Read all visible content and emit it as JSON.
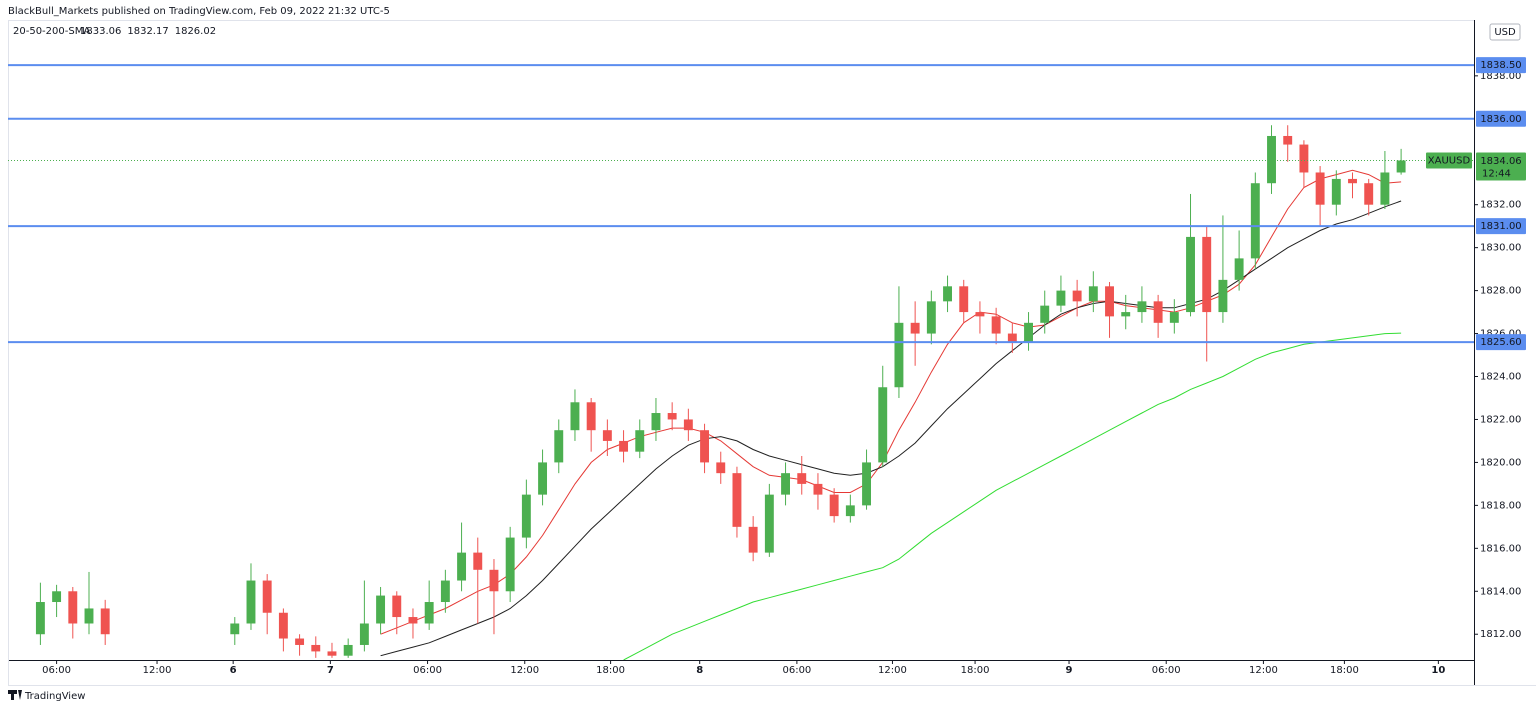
{
  "chart_data": {
    "type": "candlestick",
    "title": "BlackBull_Markets published on TradingView.com, Feb 09, 2022 21:32 UTC-5",
    "indicator": "20-50-200-SMA",
    "symbol": "XAUUSD",
    "countdown": "12:44",
    "currency": "USD",
    "brand": "TradingView",
    "up_color": "#4caf50",
    "down_color": "#ef5350",
    "xlim": [
      0,
      90.5
    ],
    "ylim": [
      1810.8,
      1840.6
    ],
    "xticks": [
      {
        "value": 3.0,
        "label": "06:00"
      },
      {
        "value": 9.2,
        "label": "12:00"
      },
      {
        "value": 13.9,
        "label": "6"
      },
      {
        "value": 19.9,
        "label": "7"
      },
      {
        "value": 25.9,
        "label": "06:00"
      },
      {
        "value": 31.9,
        "label": "12:00"
      },
      {
        "value": 37.2,
        "label": "18:00"
      },
      {
        "value": 42.7,
        "label": "8"
      },
      {
        "value": 48.7,
        "label": "06:00"
      },
      {
        "value": 54.6,
        "label": "12:00"
      },
      {
        "value": 59.7,
        "label": "18:00"
      },
      {
        "value": 65.5,
        "label": "9"
      },
      {
        "value": 71.5,
        "label": "06:00"
      },
      {
        "value": 77.5,
        "label": "12:00"
      },
      {
        "value": 82.5,
        "label": "18:00"
      },
      {
        "value": 88.3,
        "label": "10"
      }
    ],
    "yticks": [
      {
        "value": 1812,
        "label": "1812.00"
      },
      {
        "value": 1814,
        "label": "1814.00"
      },
      {
        "value": 1816,
        "label": "1816.00"
      },
      {
        "value": 1818,
        "label": "1818.00"
      },
      {
        "value": 1820,
        "label": "1820.00"
      },
      {
        "value": 1822,
        "label": "1822.00"
      },
      {
        "value": 1824,
        "label": "1824.00"
      },
      {
        "value": 1826,
        "label": "1826.00"
      },
      {
        "value": 1828,
        "label": "1828.00"
      },
      {
        "value": 1830,
        "label": "1830.00"
      },
      {
        "value": 1832,
        "label": "1832.00"
      },
      {
        "value": 1838,
        "label": "1838.00"
      }
    ],
    "levels": [
      {
        "value": 1838.5,
        "label": "1838.50"
      },
      {
        "value": 1836,
        "label": "1836.00"
      },
      {
        "value": 1831,
        "label": "1831.00"
      },
      {
        "value": 1825.6,
        "label": "1825.60"
      }
    ],
    "level_color": "#5b8def",
    "x": [
      2,
      3,
      4,
      5,
      6,
      14,
      15,
      16,
      17,
      18,
      19,
      20,
      21,
      22,
      23,
      24,
      25,
      26,
      27,
      28,
      29,
      30,
      31,
      32,
      33,
      34,
      35,
      36,
      37,
      38,
      39,
      40,
      41,
      42,
      43,
      44,
      45,
      46,
      47,
      48,
      49,
      50,
      51,
      52,
      53,
      54,
      55,
      56,
      57,
      58,
      59,
      60,
      61,
      62,
      63,
      64,
      65,
      66,
      67,
      68,
      69,
      70,
      71,
      72,
      73,
      74,
      75,
      76,
      77,
      78,
      79,
      80,
      81,
      82,
      83,
      84,
      85,
      86
    ],
    "open": [
      1812.0,
      1813.5,
      1814.0,
      1812.5,
      1813.2,
      1812.0,
      1812.5,
      1814.5,
      1813.0,
      1811.8,
      1811.5,
      1811.2,
      1811.0,
      1811.5,
      1812.5,
      1813.8,
      1812.8,
      1812.5,
      1813.5,
      1814.5,
      1815.8,
      1815.0,
      1814.0,
      1816.5,
      1818.5,
      1820.0,
      1821.5,
      1822.8,
      1821.5,
      1821.0,
      1820.5,
      1821.5,
      1822.3,
      1822.0,
      1821.5,
      1820.0,
      1819.5,
      1817.0,
      1815.8,
      1818.5,
      1819.5,
      1819.0,
      1818.5,
      1817.5,
      1818.0,
      1820.0,
      1823.5,
      1826.5,
      1826.0,
      1827.5,
      1828.2,
      1827.0,
      1826.8,
      1826.0,
      1825.6,
      1826.5,
      1827.3,
      1828.0,
      1827.5,
      1828.2,
      1826.8,
      1827.0,
      1827.5,
      1826.5,
      1827.0,
      1830.5,
      1827.0,
      1828.5,
      1829.5,
      1833.0,
      1835.2,
      1834.8,
      1833.5,
      1832.0,
      1833.2,
      1833.0,
      1832.0,
      1833.5
    ],
    "high": [
      1814.4,
      1814.3,
      1814.2,
      1814.9,
      1813.6,
      1812.8,
      1815.3,
      1814.8,
      1813.2,
      1812.0,
      1811.9,
      1811.6,
      1811.8,
      1814.5,
      1814.2,
      1814.0,
      1813.2,
      1814.5,
      1815.0,
      1817.2,
      1816.5,
      1815.5,
      1817.0,
      1819.2,
      1820.6,
      1822.0,
      1823.4,
      1823.0,
      1822.0,
      1821.5,
      1822.0,
      1823.0,
      1822.8,
      1822.5,
      1821.8,
      1820.5,
      1819.8,
      1817.5,
      1819.0,
      1820.0,
      1820.3,
      1819.5,
      1818.8,
      1818.5,
      1820.6,
      1824.5,
      1828.2,
      1827.5,
      1828.0,
      1828.7,
      1828.5,
      1827.5,
      1827.2,
      1826.5,
      1827.0,
      1828.0,
      1828.7,
      1828.5,
      1828.9,
      1828.4,
      1827.8,
      1828.2,
      1827.8,
      1827.6,
      1832.5,
      1831.0,
      1831.5,
      1830.8,
      1833.5,
      1835.7,
      1835.7,
      1835.0,
      1833.8,
      1833.6,
      1833.5,
      1833.2,
      1834.5,
      1834.6
    ],
    "low": [
      1811.5,
      1812.8,
      1811.8,
      1812.0,
      1811.5,
      1811.5,
      1812.2,
      1812.0,
      1811.2,
      1811.0,
      1810.9,
      1810.9,
      1810.9,
      1811.2,
      1812.0,
      1812.0,
      1811.8,
      1812.2,
      1813.0,
      1814.0,
      1812.5,
      1812.0,
      1813.5,
      1816.0,
      1818.0,
      1819.5,
      1821.0,
      1820.5,
      1820.3,
      1820.0,
      1820.2,
      1821.0,
      1821.5,
      1821.0,
      1819.5,
      1819.0,
      1816.5,
      1815.4,
      1815.6,
      1818.0,
      1818.5,
      1817.8,
      1817.2,
      1817.2,
      1817.8,
      1819.8,
      1823.0,
      1824.5,
      1825.5,
      1827.0,
      1826.5,
      1826.0,
      1825.5,
      1825.1,
      1825.2,
      1826.0,
      1827.0,
      1826.8,
      1827.0,
      1825.8,
      1826.2,
      1826.5,
      1825.8,
      1826.0,
      1826.8,
      1824.7,
      1826.5,
      1828.0,
      1829.0,
      1832.5,
      1834.0,
      1832.8,
      1831.0,
      1831.5,
      1832.3,
      1831.5,
      1831.8,
      1833.4
    ],
    "close": [
      1813.5,
      1814.0,
      1812.5,
      1813.2,
      1812.0,
      1812.5,
      1814.5,
      1813.0,
      1811.8,
      1811.5,
      1811.2,
      1811.0,
      1811.5,
      1812.5,
      1813.8,
      1812.8,
      1812.5,
      1813.5,
      1814.5,
      1815.8,
      1815.0,
      1814.0,
      1816.5,
      1818.5,
      1820.0,
      1821.5,
      1822.8,
      1821.5,
      1821.0,
      1820.5,
      1821.5,
      1822.3,
      1822.0,
      1821.5,
      1820.0,
      1819.5,
      1817.0,
      1815.8,
      1818.5,
      1819.5,
      1819.0,
      1818.5,
      1817.5,
      1818.0,
      1820.0,
      1823.5,
      1826.5,
      1826.0,
      1827.5,
      1828.2,
      1827.0,
      1826.8,
      1826.0,
      1825.6,
      1826.5,
      1827.3,
      1828.0,
      1827.5,
      1828.2,
      1826.8,
      1827.0,
      1827.5,
      1826.5,
      1827.0,
      1830.5,
      1827.0,
      1828.5,
      1829.5,
      1833.0,
      1835.2,
      1834.8,
      1833.5,
      1832.0,
      1833.2,
      1833.0,
      1832.0,
      1833.5,
      1834.06
    ],
    "series": [
      {
        "name": "SMA 20",
        "color": "#e53935",
        "values": [
          null,
          null,
          null,
          null,
          null,
          null,
          null,
          null,
          null,
          null,
          null,
          null,
          null,
          null,
          1812.0,
          1812.3,
          1812.6,
          1812.9,
          1813.2,
          1813.6,
          1814.0,
          1814.3,
          1814.8,
          1815.6,
          1816.6,
          1817.8,
          1819.0,
          1820.0,
          1820.6,
          1820.9,
          1821.2,
          1821.4,
          1821.6,
          1821.6,
          1821.4,
          1821.0,
          1820.4,
          1819.8,
          1819.4,
          1819.3,
          1819.2,
          1818.9,
          1818.6,
          1818.6,
          1819.0,
          1820.0,
          1821.5,
          1822.8,
          1824.2,
          1825.5,
          1826.5,
          1827.0,
          1826.9,
          1826.5,
          1826.3,
          1826.4,
          1826.8,
          1827.2,
          1827.5,
          1827.5,
          1827.3,
          1827.2,
          1827.1,
          1827.0,
          1827.2,
          1827.5,
          1827.8,
          1828.3,
          1829.2,
          1830.5,
          1831.8,
          1832.8,
          1833.2,
          1833.4,
          1833.6,
          1833.4,
          1833.0,
          1833.06
        ]
      },
      {
        "name": "SMA 50",
        "color": "#212121",
        "values": [
          null,
          null,
          null,
          null,
          null,
          null,
          null,
          null,
          null,
          null,
          null,
          null,
          null,
          null,
          1811.0,
          1811.2,
          1811.4,
          1811.6,
          1811.9,
          1812.2,
          1812.5,
          1812.8,
          1813.2,
          1813.8,
          1814.5,
          1815.3,
          1816.1,
          1816.9,
          1817.6,
          1818.3,
          1819.0,
          1819.7,
          1820.3,
          1820.8,
          1821.1,
          1821.2,
          1821.0,
          1820.6,
          1820.3,
          1820.1,
          1819.9,
          1819.7,
          1819.5,
          1819.4,
          1819.5,
          1819.8,
          1820.3,
          1820.9,
          1821.7,
          1822.5,
          1823.2,
          1823.9,
          1824.6,
          1825.2,
          1825.8,
          1826.4,
          1826.9,
          1827.2,
          1827.4,
          1827.5,
          1827.4,
          1827.3,
          1827.2,
          1827.2,
          1827.4,
          1827.6,
          1828.0,
          1828.5,
          1829.0,
          1829.5,
          1830.0,
          1830.4,
          1830.8,
          1831.1,
          1831.3,
          1831.6,
          1831.9,
          1832.17
        ]
      },
      {
        "name": "SMA 200",
        "color": "#33dd33",
        "values": [
          null,
          null,
          null,
          null,
          null,
          null,
          null,
          null,
          null,
          null,
          null,
          null,
          null,
          null,
          null,
          null,
          null,
          null,
          null,
          null,
          null,
          null,
          null,
          null,
          null,
          null,
          null,
          null,
          null,
          1810.8,
          1811.2,
          1811.6,
          1812.0,
          1812.3,
          1812.6,
          1812.9,
          1813.2,
          1813.5,
          1813.7,
          1813.9,
          1814.1,
          1814.3,
          1814.5,
          1814.7,
          1814.9,
          1815.1,
          1815.5,
          1816.1,
          1816.7,
          1817.2,
          1817.7,
          1818.2,
          1818.7,
          1819.1,
          1819.5,
          1819.9,
          1820.3,
          1820.7,
          1821.1,
          1821.5,
          1821.9,
          1822.3,
          1822.7,
          1823.0,
          1823.4,
          1823.7,
          1824.0,
          1824.4,
          1824.8,
          1825.1,
          1825.3,
          1825.5,
          1825.6,
          1825.7,
          1825.8,
          1825.9,
          1826.0,
          1826.02
        ]
      }
    ]
  }
}
